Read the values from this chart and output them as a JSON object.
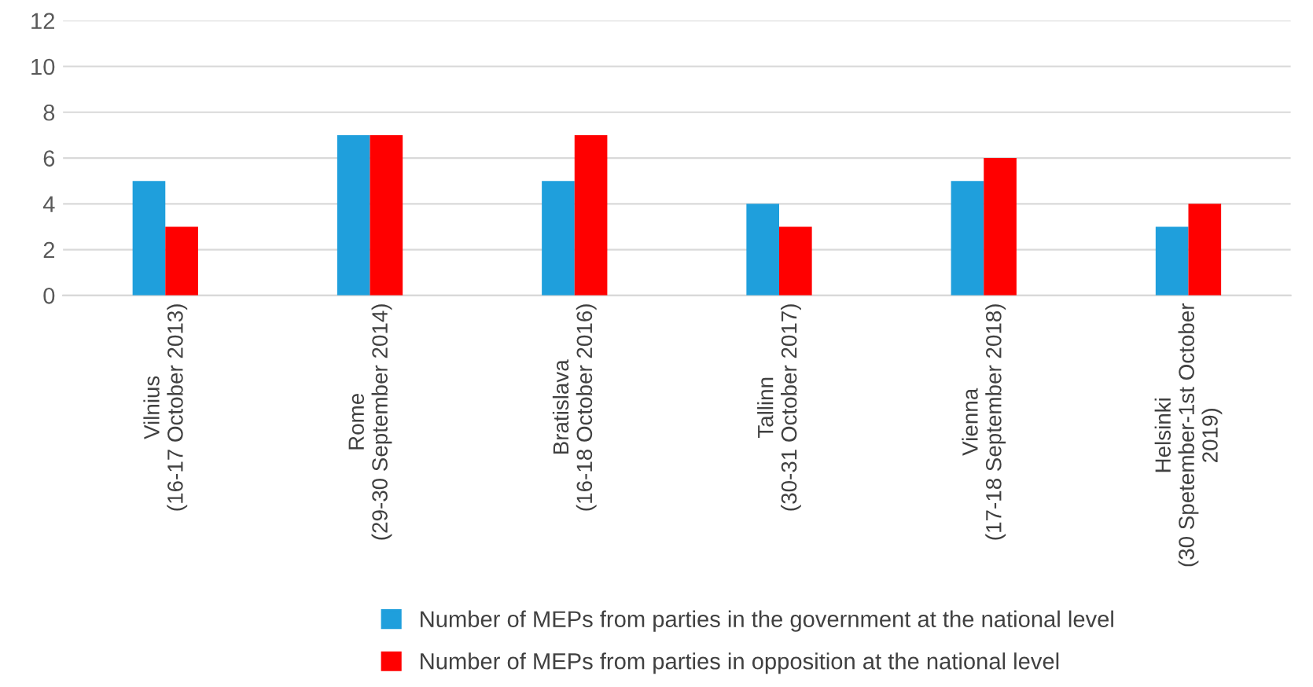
{
  "chart_data": {
    "type": "bar",
    "categories": [
      "Vilnius\n(16-17 October 2013)",
      "Rome\n(29-30 September 2014)",
      "Bratislava\n(16-18 October 2016)",
      "Tallinn\n(30-31 October 2017)",
      "Vienna\n(17-18 September 2018)",
      "Helsinki\n(30 Spetember-1st October\n2019)"
    ],
    "series": [
      {
        "name": "Number of MEPs from parties in the government at the national level",
        "color": "#1f9fdc",
        "values": [
          5,
          7,
          5,
          4,
          5,
          3
        ]
      },
      {
        "name": "Number of MEPs from parties in opposition at the national level",
        "color": "#ff0000",
        "values": [
          3,
          7,
          7,
          3,
          6,
          4
        ]
      }
    ],
    "ylim": [
      0,
      12
    ],
    "yticks": [
      0,
      2,
      4,
      6,
      8,
      10,
      12
    ],
    "grid": "y",
    "legend": "bottom"
  }
}
